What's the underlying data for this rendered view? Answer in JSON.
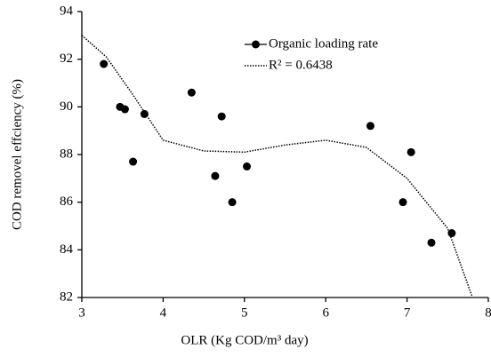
{
  "chart_data": {
    "type": "scatter",
    "x_label": "OLR (Kg COD/m³ day)",
    "y_label": "COD removel effciency (%)",
    "xlim": [
      3,
      8
    ],
    "xticks": [
      3,
      4,
      5,
      6,
      7,
      8
    ],
    "ylim": [
      82,
      94
    ],
    "yticks": [
      82,
      84,
      86,
      88,
      90,
      92,
      94
    ],
    "legend": "top-right",
    "series": [
      {
        "name": "Organic loading rate",
        "color": "#000000",
        "style": "markers",
        "x": [
          3.27,
          3.47,
          3.53,
          3.63,
          3.77,
          4.35,
          4.64,
          4.72,
          4.85,
          5.03,
          6.55,
          6.95,
          7.05,
          7.3,
          7.55
        ],
        "values": [
          91.8,
          90.0,
          89.9,
          87.7,
          89.7,
          90.6,
          87.1,
          89.6,
          86.0,
          87.5,
          89.2,
          86.0,
          88.1,
          84.3,
          84.7
        ]
      },
      {
        "name": "R² = 0.6438",
        "color": "#000000",
        "style": "dotted-line",
        "x": [
          3,
          3.3,
          3.63,
          4,
          4.5,
          5,
          5.5,
          6,
          6.5,
          7,
          7.5,
          7.8
        ],
        "values": [
          93.0,
          92.1,
          90.5,
          88.6,
          88.15,
          88.1,
          88.4,
          88.6,
          88.3,
          87.0,
          84.9,
          82.05
        ]
      }
    ]
  }
}
